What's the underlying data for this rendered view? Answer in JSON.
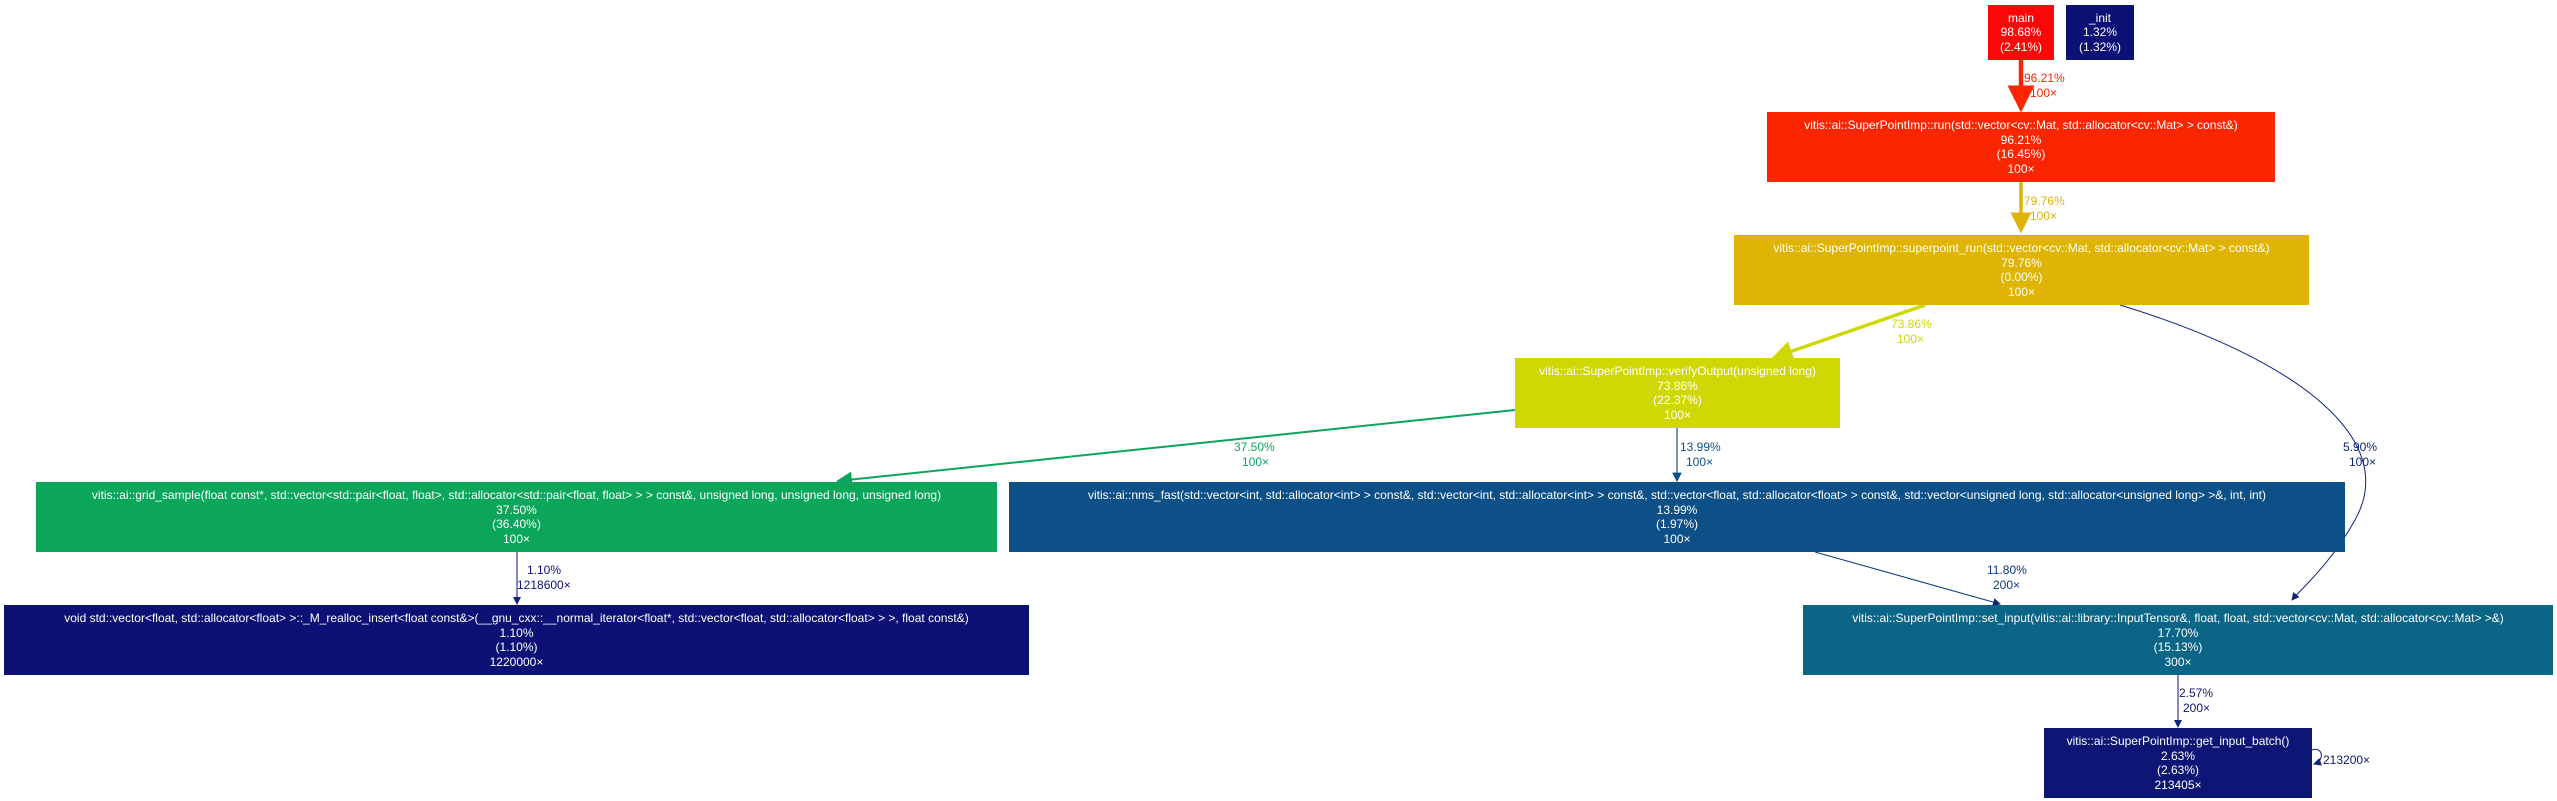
{
  "nodes": {
    "main": {
      "name": "main",
      "total": "98.68%",
      "self": "(2.41%)",
      "color": "#fa0807"
    },
    "init": {
      "name": "_init",
      "total": "1.32%",
      "self": "(1.32%)",
      "color": "#0d1074"
    },
    "run": {
      "name": "vitis::ai::SuperPointImp::run(std::vector<cv::Mat, std::allocator<cv::Mat> > const&)",
      "total": "96.21%",
      "self": "(16.45%)",
      "calls": "100×",
      "color": "#fa2602"
    },
    "superpoint_run": {
      "name": "vitis::ai::SuperPointImp::superpoint_run(std::vector<cv::Mat, std::allocator<cv::Mat> > const&)",
      "total": "79.76%",
      "self": "(0.00%)",
      "calls": "100×",
      "color": "#dfb404"
    },
    "verify": {
      "name": "vitis::ai::SuperPointImp::verifyOutput(unsigned long)",
      "total": "73.86%",
      "self": "(22.37%)",
      "calls": "100×",
      "color": "#cfd805"
    },
    "grid_sample": {
      "name": "vitis::ai::grid_sample(float const*, std::vector<std::pair<float, float>, std::allocator<std::pair<float, float> > > const&, unsigned long, unsigned long, unsigned long)",
      "total": "37.50%",
      "self": "(36.40%)",
      "calls": "100×",
      "color": "#0ba65a"
    },
    "nms_fast": {
      "name": "vitis::ai::nms_fast(std::vector<int, std::allocator<int> > const&, std::vector<int, std::allocator<int> > const&, std::vector<float, std::allocator<float> > const&, std::vector<unsigned long, std::allocator<unsigned long> >&, int, int)",
      "total": "13.99%",
      "self": "(1.97%)",
      "calls": "100×",
      "color": "#0d4f87"
    },
    "realloc": {
      "name": "void std::vector<float, std::allocator<float> >::_M_realloc_insert<float const&>(__gnu_cxx::__normal_iterator<float*, std::vector<float, std::allocator<float> > >, float const&)",
      "total": "1.10%",
      "self": "(1.10%)",
      "calls": "1220000×",
      "color": "#0d1074"
    },
    "set_input": {
      "name": "vitis::ai::SuperPointImp::set_input(vitis::ai::library::InputTensor&, float, float, std::vector<cv::Mat, std::allocator<cv::Mat> >&)",
      "total": "17.70%",
      "self": "(15.13%)",
      "calls": "300×",
      "color": "#0b6587"
    },
    "get_input_batch": {
      "name": "vitis::ai::SuperPointImp::get_input_batch()",
      "total": "2.63%",
      "self": "(2.63%)",
      "calls": "213405×",
      "color": "#0d1575"
    }
  },
  "edges": {
    "main_run": {
      "pct": "96.21%",
      "calls": "100×",
      "color": "#fa2602"
    },
    "run_sp": {
      "pct": "79.76%",
      "calls": "100×",
      "color": "#dfb404"
    },
    "sp_verify": {
      "pct": "73.86%",
      "calls": "100×",
      "color": "#cfd805"
    },
    "sp_set_input": {
      "pct": "5.90%",
      "calls": "100×",
      "color": "#0d2479"
    },
    "verify_grid": {
      "pct": "37.50%",
      "calls": "100×",
      "color": "#0ba65a"
    },
    "verify_nms": {
      "pct": "13.99%",
      "calls": "100×",
      "color": "#0d4f87"
    },
    "grid_realloc": {
      "pct": "1.10%",
      "calls": "1218600×",
      "color": "#0d1074"
    },
    "nms_set_input": {
      "pct": "11.80%",
      "calls": "200×",
      "color": "#0d3b80"
    },
    "set_input_get": {
      "pct": "2.57%",
      "calls": "200×",
      "color": "#0d1575"
    },
    "get_self": {
      "calls": "213200×",
      "color": "#0d1575"
    }
  }
}
